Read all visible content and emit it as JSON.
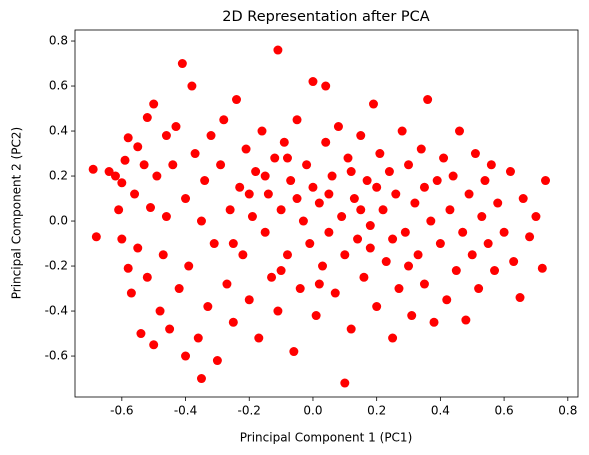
{
  "chart_data": {
    "type": "scatter",
    "title": "2D Representation after PCA",
    "x_label": "Principal Component 1 (PC1)",
    "y_label": "Principal Component 2 (PC2)",
    "color": "#ff0000",
    "xlim": [
      -0.747,
      0.832
    ],
    "ylim": [
      -0.782,
      0.849
    ],
    "xticks": [
      -0.6,
      -0.4,
      -0.2,
      {
        "value": 0,
        "label": "0.0"
      },
      0.2,
      0.4,
      0.6,
      0.8
    ],
    "yticks": [
      -0.6,
      -0.4,
      -0.2,
      {
        "value": 0,
        "label": "0.0"
      },
      0.2,
      0.4,
      0.6,
      0.8
    ],
    "x": [
      -0.69,
      -0.68,
      -0.64,
      -0.62,
      -0.61,
      -0.6,
      -0.6,
      -0.59,
      -0.58,
      -0.58,
      -0.57,
      -0.56,
      -0.55,
      -0.55,
      -0.54,
      -0.53,
      -0.52,
      -0.52,
      -0.51,
      -0.5,
      -0.5,
      -0.49,
      -0.48,
      -0.47,
      -0.46,
      -0.46,
      -0.45,
      -0.44,
      -0.43,
      -0.42,
      -0.41,
      -0.4,
      -0.4,
      -0.39,
      -0.38,
      -0.37,
      -0.36,
      -0.35,
      -0.35,
      -0.34,
      -0.33,
      -0.32,
      -0.31,
      -0.3,
      -0.29,
      -0.28,
      -0.27,
      -0.26,
      -0.25,
      -0.24,
      -0.23,
      -0.22,
      -0.21,
      -0.2,
      -0.19,
      -0.18,
      -0.17,
      -0.16,
      -0.15,
      -0.14,
      -0.13,
      -0.12,
      -0.11,
      -0.11,
      -0.1,
      -0.09,
      -0.08,
      -0.07,
      -0.06,
      -0.05,
      -0.04,
      -0.03,
      -0.02,
      -0.01,
      0.0,
      0.0,
      0.01,
      0.02,
      0.03,
      0.04,
      0.04,
      0.05,
      0.06,
      0.07,
      0.08,
      0.09,
      0.1,
      0.1,
      0.11,
      0.12,
      0.13,
      0.14,
      0.15,
      0.16,
      0.17,
      0.18,
      0.19,
      0.2,
      0.21,
      0.22,
      0.23,
      0.24,
      0.25,
      0.26,
      0.27,
      0.28,
      0.29,
      0.3,
      0.31,
      0.32,
      0.33,
      0.34,
      0.35,
      0.36,
      0.37,
      0.38,
      0.39,
      0.4,
      0.41,
      0.42,
      0.43,
      0.44,
      0.45,
      0.46,
      0.47,
      0.48,
      0.49,
      0.5,
      0.51,
      0.52,
      0.53,
      0.54,
      0.55,
      0.56,
      0.57,
      0.58,
      0.6,
      0.62,
      0.63,
      0.65,
      0.66,
      0.68,
      0.7,
      0.72,
      0.73,
      -0.2,
      -0.15,
      -0.05,
      0.05,
      0.15,
      0.25,
      -0.1,
      0.2,
      0.3,
      -0.25,
      0.35,
      0.12,
      -0.08,
      0.02,
      0.18
    ],
    "values": [
      0.23,
      -0.07,
      0.22,
      0.2,
      0.05,
      -0.08,
      0.17,
      0.27,
      0.37,
      -0.21,
      -0.32,
      0.12,
      -0.12,
      0.33,
      -0.5,
      0.25,
      0.46,
      -0.25,
      0.06,
      -0.55,
      0.52,
      0.2,
      -0.4,
      -0.15,
      0.38,
      0.02,
      -0.48,
      0.25,
      0.42,
      -0.3,
      0.7,
      -0.6,
      0.1,
      -0.2,
      0.6,
      0.3,
      -0.52,
      -0.7,
      0.0,
      0.18,
      -0.38,
      0.38,
      -0.1,
      -0.62,
      0.25,
      0.45,
      -0.28,
      0.05,
      -0.45,
      0.54,
      0.15,
      -0.15,
      0.32,
      -0.35,
      0.02,
      0.22,
      -0.52,
      0.4,
      -0.05,
      0.12,
      -0.25,
      0.28,
      0.76,
      -0.4,
      0.05,
      0.35,
      -0.15,
      0.18,
      -0.58,
      0.45,
      -0.3,
      0.0,
      0.25,
      -0.1,
      0.62,
      0.15,
      -0.42,
      0.08,
      -0.2,
      0.6,
      0.35,
      -0.05,
      0.2,
      -0.32,
      0.42,
      0.02,
      -0.72,
      -0.15,
      0.28,
      -0.48,
      0.1,
      -0.08,
      0.38,
      -0.25,
      0.18,
      -0.02,
      0.52,
      -0.38,
      0.3,
      0.05,
      -0.18,
      0.22,
      -0.52,
      0.12,
      -0.3,
      0.4,
      -0.05,
      0.25,
      -0.42,
      0.08,
      -0.15,
      0.32,
      -0.28,
      0.54,
      0.0,
      -0.45,
      0.18,
      -0.1,
      0.28,
      -0.35,
      0.05,
      0.2,
      -0.22,
      0.4,
      -0.05,
      -0.44,
      0.12,
      -0.15,
      0.3,
      -0.3,
      0.02,
      0.18,
      -0.1,
      0.25,
      -0.22,
      0.08,
      -0.05,
      0.22,
      -0.18,
      -0.34,
      0.1,
      -0.07,
      0.02,
      -0.21,
      0.18,
      0.12,
      0.2,
      0.1,
      0.12,
      0.05,
      -0.08,
      -0.22,
      0.15,
      -0.2,
      -0.1,
      0.15,
      0.22,
      0.28,
      -0.28,
      -0.12
    ]
  }
}
